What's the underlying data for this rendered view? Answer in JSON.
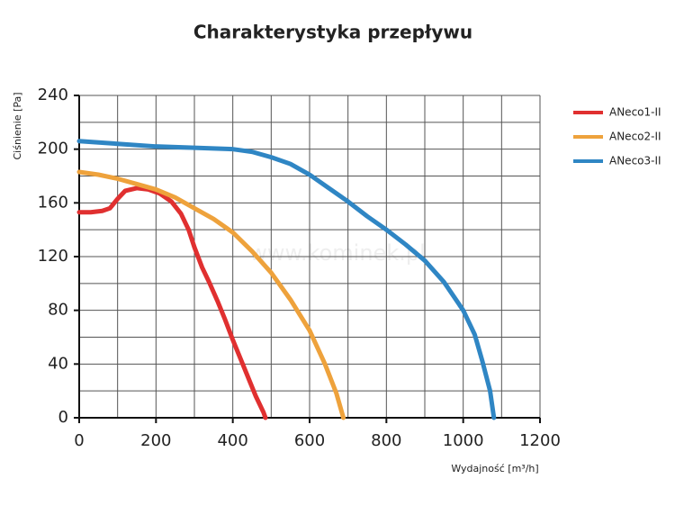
{
  "chart_data": {
    "type": "line",
    "title": "Charakterystyka przepływu",
    "xlabel": "Wydajność [m³/h]",
    "ylabel": "Ciśnienie [Pa]",
    "watermark": "www.kominek.pl",
    "xlim": [
      0,
      1200
    ],
    "xticks": [
      0,
      200,
      400,
      600,
      800,
      1000,
      1200
    ],
    "x_minor_ticks": [
      100,
      300,
      500,
      700,
      900,
      1100
    ],
    "ylim": [
      0,
      240
    ],
    "yticks": [
      0,
      40,
      80,
      120,
      160,
      200,
      240
    ],
    "y_minor_ticks": [
      20,
      60,
      100,
      140,
      180,
      220
    ],
    "grid": true,
    "legend": "right",
    "series": [
      {
        "name": "ANeco1-II",
        "color": "#e03030",
        "x": [
          0,
          30,
          60,
          80,
          100,
          120,
          150,
          180,
          210,
          240,
          265,
          285,
          300,
          320,
          340,
          360,
          380,
          400,
          420,
          440,
          460,
          480,
          485
        ],
        "values": [
          153,
          153,
          154,
          156,
          163,
          169,
          171,
          170,
          167,
          161,
          152,
          140,
          127,
          112,
          100,
          87,
          73,
          58,
          44,
          30,
          16,
          4,
          0
        ]
      },
      {
        "name": "ANeco2-II",
        "color": "#eea23c",
        "x": [
          0,
          50,
          100,
          150,
          200,
          250,
          300,
          350,
          400,
          450,
          500,
          550,
          600,
          640,
          670,
          688
        ],
        "values": [
          183,
          181,
          178,
          174,
          170,
          164,
          156,
          148,
          138,
          124,
          108,
          88,
          65,
          40,
          18,
          0
        ]
      },
      {
        "name": "ANeco3-II",
        "color": "#2f86c4",
        "x": [
          0,
          100,
          200,
          300,
          400,
          450,
          500,
          550,
          600,
          650,
          700,
          750,
          800,
          850,
          900,
          950,
          1000,
          1030,
          1050,
          1070,
          1080
        ],
        "values": [
          206,
          204,
          202,
          201,
          200,
          198,
          194,
          189,
          181,
          171,
          161,
          150,
          140,
          129,
          117,
          101,
          80,
          62,
          42,
          20,
          0
        ]
      }
    ]
  }
}
